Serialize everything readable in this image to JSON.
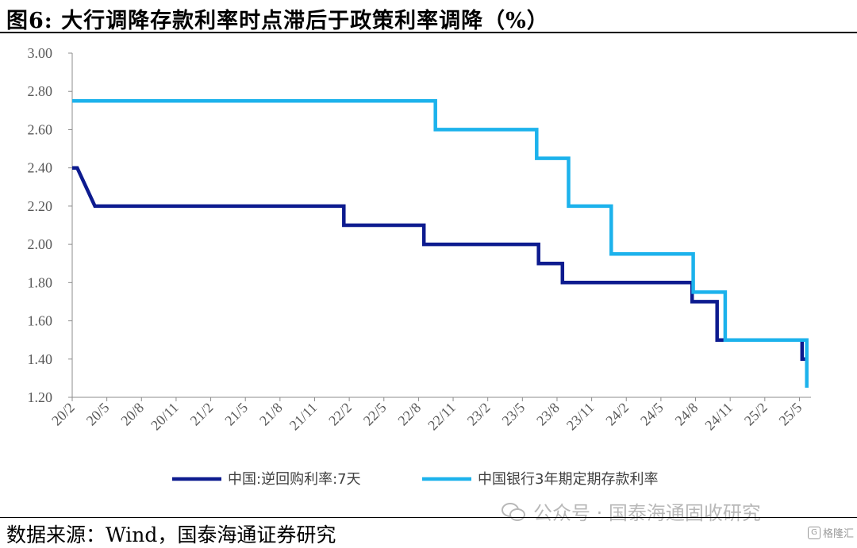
{
  "header": {
    "title": "图6:  大行调降存款利率时点滞后于政策利率调降（%）"
  },
  "footer": {
    "source": "数据来源：Wind，国泰海通证券研究",
    "watermark": "公众号 · 国泰海通固收研究",
    "corner_mark": "格隆汇",
    "corner_glyph": "G"
  },
  "colors": {
    "series_1": "#0d1b8f",
    "series_2": "#1cb2ec",
    "axis": "#8c8c8c",
    "tick_text": "#595959"
  },
  "chart_data": {
    "type": "line",
    "title": "大行调降存款利率时点滞后于政策利率调降（%）",
    "xlabel": "",
    "ylabel": "",
    "ylim": [
      1.2,
      3.0
    ],
    "yticks": [
      "1.20",
      "1.40",
      "1.60",
      "1.80",
      "2.00",
      "2.20",
      "2.40",
      "2.60",
      "2.80",
      "3.00"
    ],
    "xlim": [
      "2020-02",
      "2025-06"
    ],
    "xticks": [
      "20/2",
      "20/5",
      "20/8",
      "20/11",
      "21/2",
      "21/5",
      "21/8",
      "21/11",
      "22/2",
      "22/5",
      "22/8",
      "22/11",
      "23/2",
      "23/5",
      "23/8",
      "23/11",
      "24/2",
      "24/5",
      "24/8",
      "24/11",
      "25/2",
      "25/5"
    ],
    "grid": false,
    "legend_position": "bottom",
    "series": [
      {
        "name": "中国:逆回购利率:7天",
        "points": [
          [
            "2020-02-01",
            2.4
          ],
          [
            "2020-02-14",
            2.4
          ],
          [
            "2020-03-30",
            2.2
          ],
          [
            "2022-01-17",
            2.2
          ],
          [
            "2022-01-17",
            2.1
          ],
          [
            "2022-08-15",
            2.1
          ],
          [
            "2022-08-15",
            2.0
          ],
          [
            "2023-06-13",
            2.0
          ],
          [
            "2023-06-13",
            1.9
          ],
          [
            "2023-08-15",
            1.9
          ],
          [
            "2023-08-15",
            1.8
          ],
          [
            "2024-07-22",
            1.8
          ],
          [
            "2024-07-22",
            1.7
          ],
          [
            "2024-09-27",
            1.7
          ],
          [
            "2024-09-27",
            1.5
          ],
          [
            "2025-05-08",
            1.5
          ],
          [
            "2025-05-08",
            1.4
          ],
          [
            "2025-05-20",
            1.4
          ]
        ]
      },
      {
        "name": "中国银行3年期定期存款利率",
        "points": [
          [
            "2020-02-01",
            2.75
          ],
          [
            "2022-09-15",
            2.75
          ],
          [
            "2022-09-15",
            2.6
          ],
          [
            "2023-06-08",
            2.6
          ],
          [
            "2023-06-08",
            2.45
          ],
          [
            "2023-09-01",
            2.45
          ],
          [
            "2023-09-01",
            2.2
          ],
          [
            "2023-12-22",
            2.2
          ],
          [
            "2023-12-22",
            1.95
          ],
          [
            "2024-07-25",
            1.95
          ],
          [
            "2024-07-25",
            1.75
          ],
          [
            "2024-10-18",
            1.75
          ],
          [
            "2024-10-18",
            1.5
          ],
          [
            "2025-05-20",
            1.5
          ],
          [
            "2025-05-20",
            1.25
          ]
        ]
      }
    ]
  }
}
